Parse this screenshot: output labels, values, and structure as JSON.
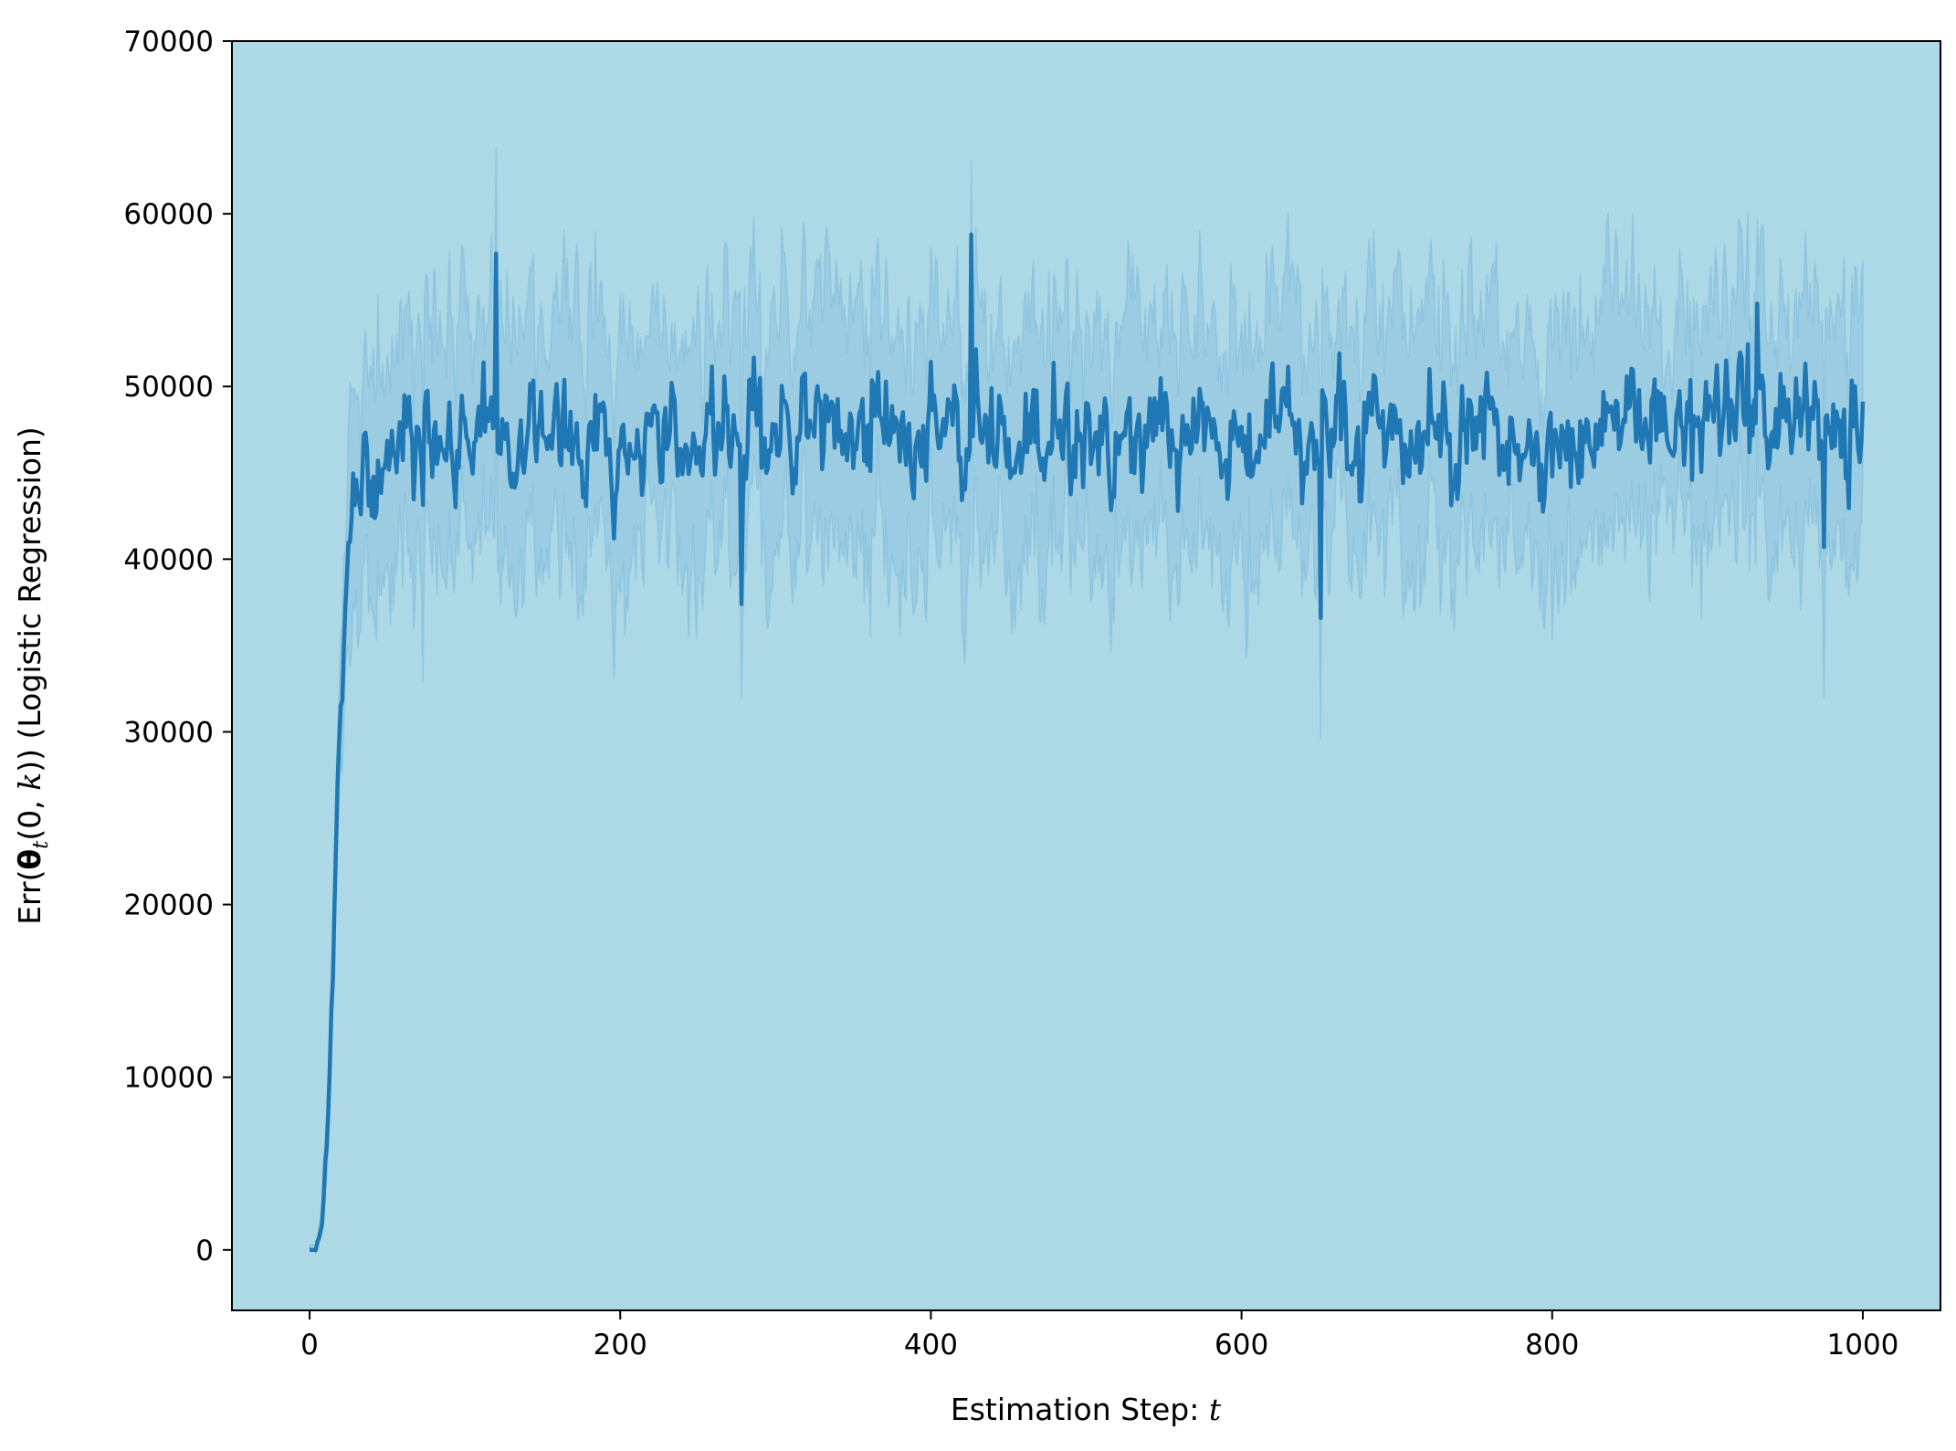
{
  "chart_data": {
    "type": "line",
    "title": "",
    "xlabel": {
      "text": "Estimation Step: ",
      "var": "t"
    },
    "ylabel": {
      "prefix": "Err(",
      "bold_symbol": "θ",
      "subscript": "t",
      "after_sub": "(0, ",
      "italic_var": "k",
      "suffix": ")) (Logistic Regression)"
    },
    "xlim": [
      -50,
      1050
    ],
    "ylim": [
      -3500,
      70000
    ],
    "xticks": [
      0,
      200,
      400,
      600,
      800,
      1000
    ],
    "yticks": [
      0,
      10000,
      20000,
      30000,
      40000,
      50000,
      60000,
      70000
    ],
    "xtick_labels": [
      "0",
      "200",
      "400",
      "600",
      "800",
      "1000"
    ],
    "ytick_labels": [
      "0",
      "10000",
      "20000",
      "30000",
      "40000",
      "50000",
      "60000",
      "70000"
    ],
    "background_color": "#add8e6",
    "series": [
      {
        "color": "#1f77b4",
        "band_color": "#6baed6",
        "x_range": [
          0,
          1000
        ],
        "mean_points": [
          [
            0,
            0
          ],
          [
            4,
            0
          ],
          [
            8,
            1500
          ],
          [
            12,
            8000
          ],
          [
            15,
            17000
          ],
          [
            18,
            27000
          ],
          [
            21,
            33000
          ],
          [
            25,
            40000
          ],
          [
            30,
            43000
          ],
          [
            40,
            45500
          ],
          [
            60,
            47000
          ],
          [
            100,
            47500
          ],
          [
            200,
            47200
          ],
          [
            400,
            47300
          ],
          [
            600,
            47200
          ],
          [
            800,
            47100
          ],
          [
            1000,
            48500
          ]
        ],
        "plateau_mean": 47300,
        "noise_sd": 2800,
        "band_upper_offset": 6500,
        "band_lower_offset": 6500,
        "peaks": [
          [
            120,
            57700
          ],
          [
            426,
            58800
          ],
          [
            932,
            54800
          ]
        ],
        "troughs": [
          [
            278,
            37400
          ],
          [
            651,
            36600
          ],
          [
            975,
            40700
          ]
        ]
      }
    ]
  }
}
